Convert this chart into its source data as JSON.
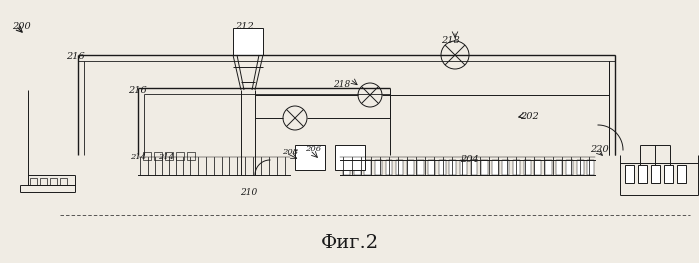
{
  "title": "Фиг.2",
  "title_fontsize": 14,
  "background_color": "#f0ece4",
  "line_color": "#1a1a1a",
  "label_200": "200",
  "label_202": "202",
  "label_204": "204",
  "label_206": "206",
  "label_208": "208",
  "label_210": "210",
  "label_212": "212",
  "label_214a": "214",
  "label_214b": "214",
  "label_216a": "216",
  "label_216b": "216",
  "label_218a": "218",
  "label_218b": "218",
  "label_220": "220",
  "figsize": [
    6.99,
    2.63
  ],
  "dpi": 100
}
